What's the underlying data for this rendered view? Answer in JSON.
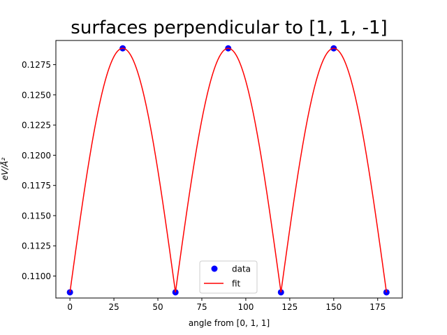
{
  "chart_data": {
    "type": "line",
    "title": "surfaces perpendicular to [1, 1, -1]",
    "xlabel": "angle from [0, 1, 1]",
    "ylabel": "eV/Å²",
    "xlim": [
      -8,
      189
    ],
    "ylim": [
      0.10818,
      0.1295
    ],
    "xticks": [
      0,
      25,
      50,
      75,
      100,
      125,
      150,
      175
    ],
    "yticks": [
      0.11,
      0.1125,
      0.115,
      0.1175,
      0.12,
      0.1225,
      0.125,
      0.1275
    ],
    "ytick_labels": [
      "0.1100",
      "0.1125",
      "0.1150",
      "0.1175",
      "0.1200",
      "0.1225",
      "0.1250",
      "0.1275"
    ],
    "grid": false,
    "legend_position": "lower-center",
    "series": [
      {
        "name": "data",
        "kind": "scatter",
        "color": "#0000ff",
        "x": [
          0,
          30,
          60,
          90,
          120,
          150,
          180
        ],
        "y": [
          0.10865,
          0.12885,
          0.10865,
          0.12885,
          0.10865,
          0.12885,
          0.10865
        ]
      },
      {
        "name": "fit",
        "kind": "line",
        "color": "#ff0000",
        "fit_min": 0.10865,
        "fit_max": 0.12885,
        "period_deg": 60
      }
    ]
  }
}
